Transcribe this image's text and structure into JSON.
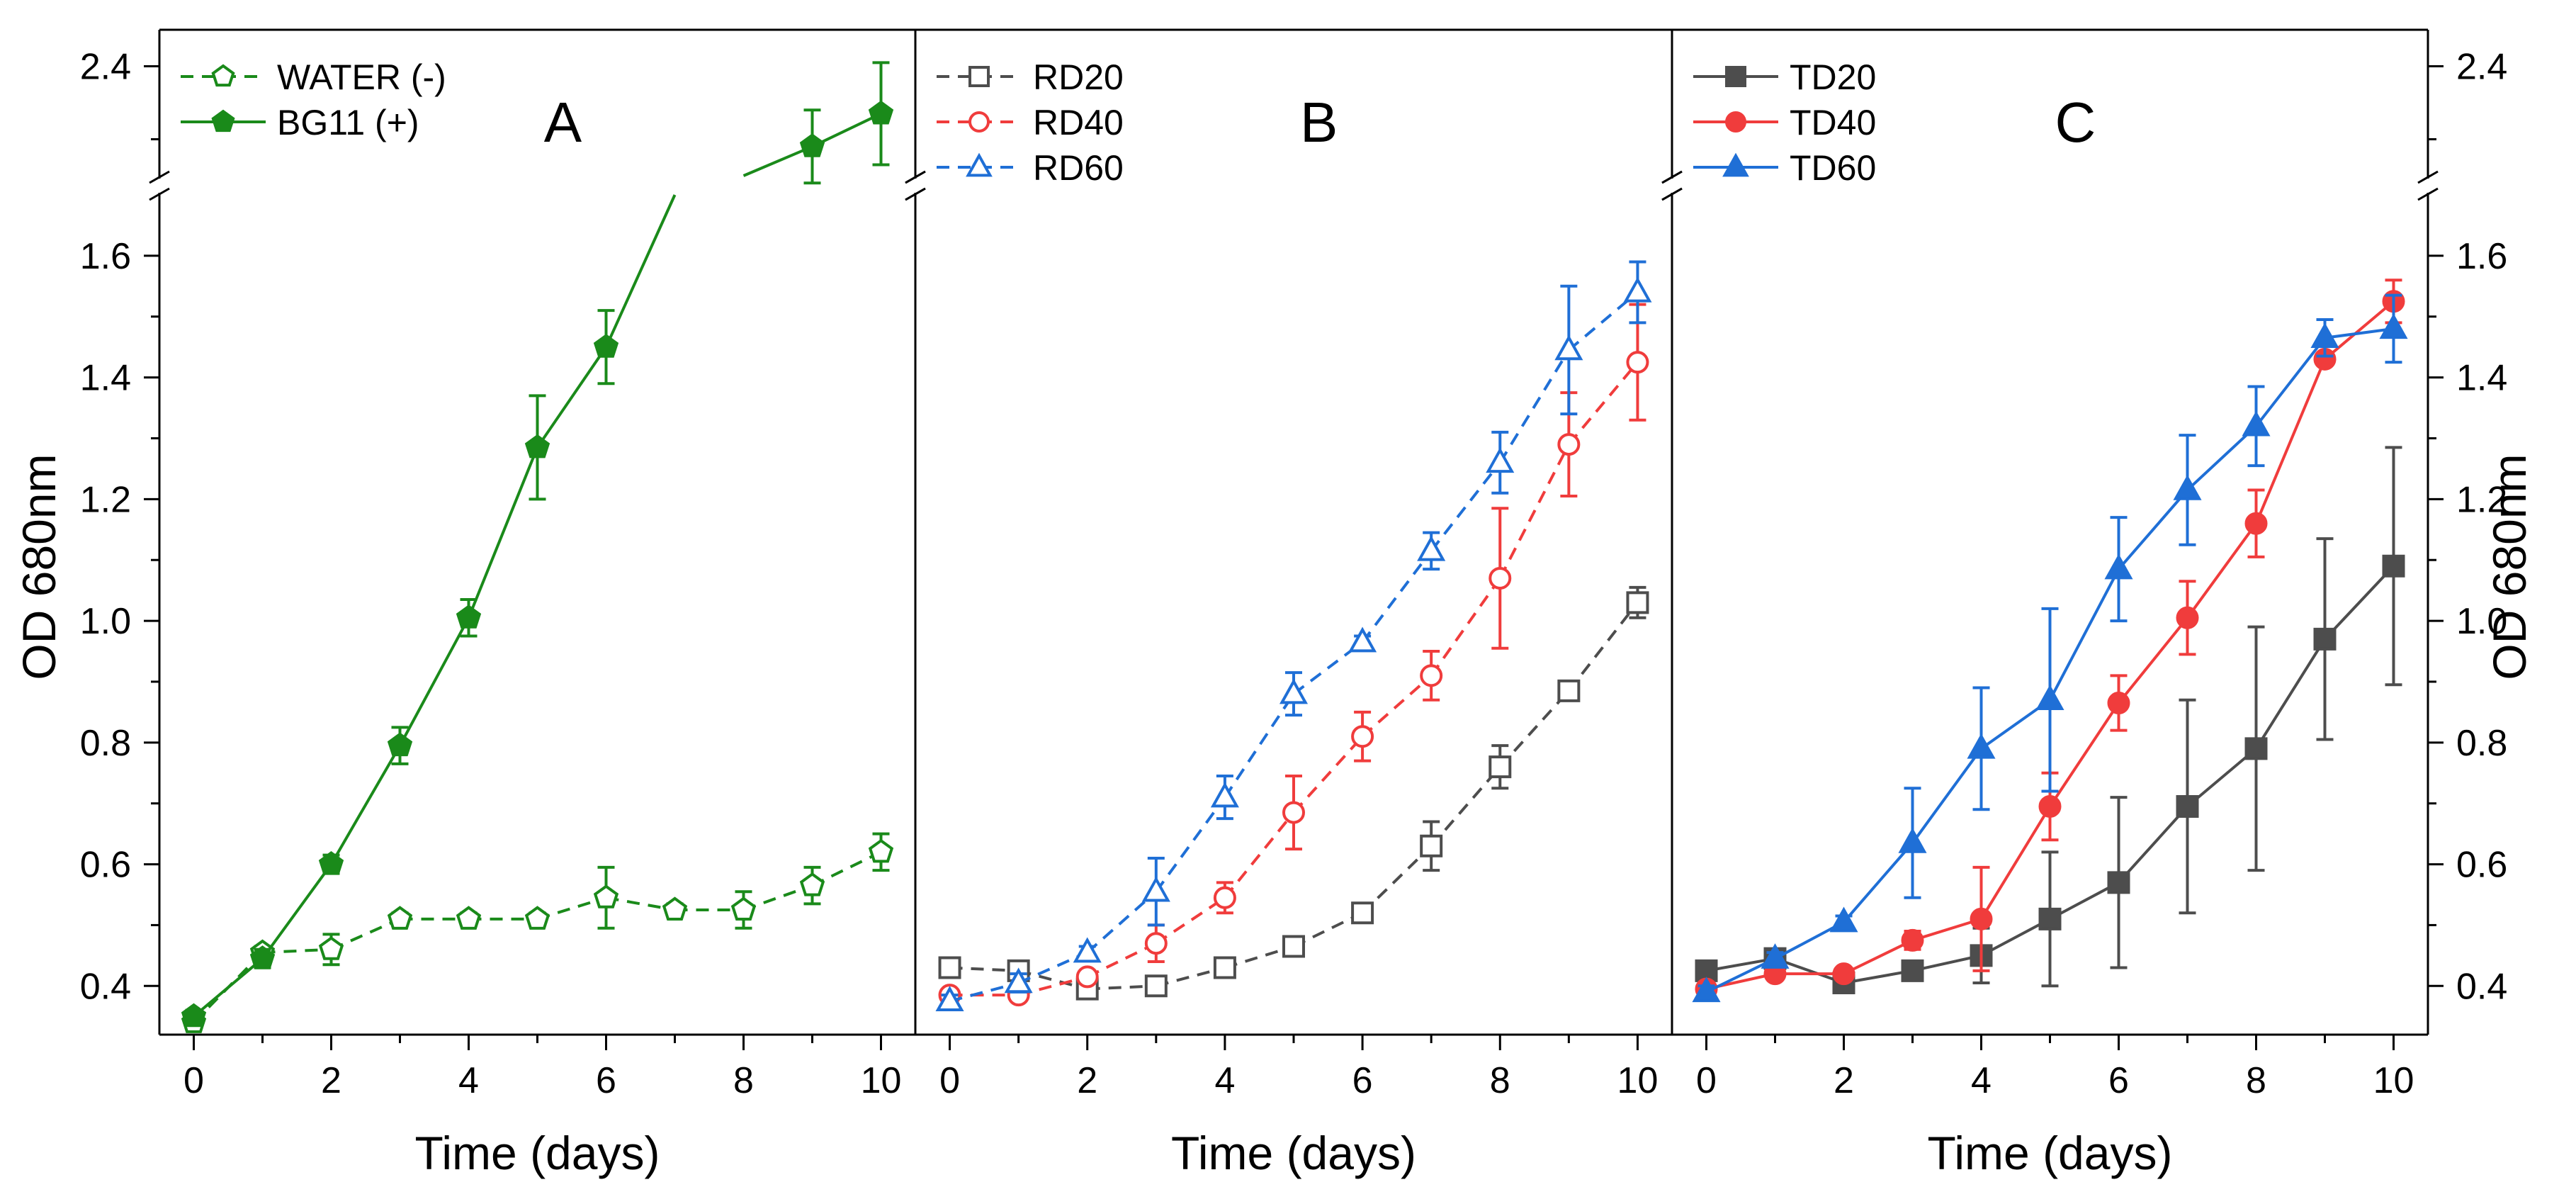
{
  "figure": {
    "ylabel": "OD 680nm",
    "xlabel": "Time (days)",
    "x_ticks": [
      0,
      2,
      4,
      6,
      8,
      10
    ],
    "y_ticks_lower": [
      0.4,
      0.6,
      0.8,
      1.0,
      1.2,
      1.4,
      1.6
    ],
    "y_tick_labels_lower": [
      "0.4",
      "0.6",
      "0.8",
      "1.0",
      "1.2",
      "1.4",
      "1.6"
    ],
    "y_ticks_upper": [
      2.4
    ],
    "y_tick_labels_upper": [
      "2.4"
    ],
    "x_tick_labels": [
      "0",
      "2",
      "4",
      "6",
      "8",
      "10"
    ],
    "colors": {
      "green": "#1a8a1a",
      "gray": "#4d4d4d",
      "red": "#f03c3c",
      "blue": "#1f6fd6"
    }
  },
  "chart_data": [
    {
      "panel": "A",
      "type": "line",
      "xlabel": "Time (days)",
      "ylabel": "OD 680nm",
      "xlim": [
        -0.5,
        10.5
      ],
      "ylim_lower": [
        0.32,
        1.7
      ],
      "ylim_upper": [
        2.1,
        2.5
      ],
      "legend_position": "top-left",
      "series": [
        {
          "name": "WATER (-)",
          "style": "dashed",
          "marker": "pentagon",
          "filled": false,
          "color": "#1a8a1a",
          "x": [
            0,
            1,
            2,
            3,
            4,
            5,
            6,
            7,
            8,
            9,
            10
          ],
          "y": [
            0.34,
            0.455,
            0.46,
            0.51,
            0.51,
            0.51,
            0.545,
            0.525,
            0.525,
            0.565,
            0.62
          ],
          "err": [
            0.01,
            0.01,
            0.025,
            0.01,
            0.01,
            0.01,
            0.05,
            0.01,
            0.03,
            0.03,
            0.03
          ]
        },
        {
          "name": "BG11 (+)",
          "style": "solid",
          "marker": "pentagon",
          "filled": true,
          "color": "#1a8a1a",
          "x": [
            0,
            1,
            2,
            3,
            4,
            5,
            6,
            9,
            10
          ],
          "y": [
            0.35,
            0.445,
            0.6,
            0.795,
            1.005,
            1.285,
            1.45,
            2.18,
            2.27
          ],
          "err": [
            0.01,
            0.015,
            0.015,
            0.03,
            0.03,
            0.085,
            0.06,
            0.1,
            0.14
          ]
        }
      ]
    },
    {
      "panel": "B",
      "type": "line",
      "xlabel": "Time (days)",
      "xlim": [
        -0.5,
        10.5
      ],
      "ylim_lower": [
        0.32,
        1.7
      ],
      "legend_position": "top-left",
      "series": [
        {
          "name": "RD20",
          "style": "dashed",
          "marker": "square",
          "filled": false,
          "color": "#4d4d4d",
          "x": [
            0,
            1,
            2,
            3,
            4,
            5,
            6,
            7,
            8,
            9,
            10
          ],
          "y": [
            0.43,
            0.425,
            0.395,
            0.4,
            0.43,
            0.465,
            0.52,
            0.63,
            0.76,
            0.885,
            1.03
          ],
          "err": [
            0.01,
            0.01,
            0.01,
            0.01,
            0.01,
            0.01,
            0.01,
            0.04,
            0.035,
            0.01,
            0.025
          ]
        },
        {
          "name": "RD40",
          "style": "dashed",
          "marker": "circle",
          "filled": false,
          "color": "#f03c3c",
          "x": [
            0,
            1,
            2,
            3,
            4,
            5,
            6,
            7,
            8,
            9,
            10
          ],
          "y": [
            0.385,
            0.385,
            0.415,
            0.47,
            0.545,
            0.685,
            0.81,
            0.91,
            1.07,
            1.29,
            1.425
          ],
          "err": [
            0.01,
            0.01,
            0.01,
            0.03,
            0.025,
            0.06,
            0.04,
            0.04,
            0.115,
            0.085,
            0.095
          ]
        },
        {
          "name": "RD60",
          "style": "dashed",
          "marker": "triangle",
          "filled": false,
          "color": "#1f6fd6",
          "x": [
            0,
            1,
            2,
            3,
            4,
            5,
            6,
            7,
            8,
            9,
            10
          ],
          "y": [
            0.375,
            0.405,
            0.455,
            0.555,
            0.71,
            0.88,
            0.965,
            1.115,
            1.26,
            1.445,
            1.54
          ],
          "err": [
            0.01,
            0.015,
            0.01,
            0.055,
            0.035,
            0.035,
            0.01,
            0.03,
            0.05,
            0.105,
            0.05
          ]
        }
      ]
    },
    {
      "panel": "C",
      "type": "line",
      "xlabel": "Time (days)",
      "ylabel": "OD 680nm",
      "xlim": [
        -0.5,
        10.5
      ],
      "ylim_lower": [
        0.32,
        1.7
      ],
      "ylim_upper": [
        2.1,
        2.5
      ],
      "legend_position": "top-left",
      "series": [
        {
          "name": "TD20",
          "style": "solid",
          "marker": "square",
          "filled": true,
          "color": "#4d4d4d",
          "x": [
            0,
            1,
            2,
            3,
            4,
            5,
            6,
            7,
            8,
            9,
            10
          ],
          "y": [
            0.425,
            0.445,
            0.405,
            0.425,
            0.45,
            0.51,
            0.57,
            0.695,
            0.79,
            0.97,
            1.09
          ],
          "err": [
            0.01,
            0.01,
            0.01,
            0.01,
            0.045,
            0.11,
            0.14,
            0.175,
            0.2,
            0.165,
            0.195
          ]
        },
        {
          "name": "TD40",
          "style": "solid",
          "marker": "circle",
          "filled": true,
          "color": "#f03c3c",
          "x": [
            0,
            1,
            2,
            3,
            4,
            5,
            6,
            7,
            8,
            9,
            10
          ],
          "y": [
            0.395,
            0.42,
            0.42,
            0.475,
            0.51,
            0.695,
            0.865,
            1.005,
            1.16,
            1.43,
            1.525
          ],
          "err": [
            0.01,
            0.01,
            0.01,
            0.015,
            0.085,
            0.055,
            0.045,
            0.06,
            0.055,
            0.01,
            0.035
          ]
        },
        {
          "name": "TD60",
          "style": "solid",
          "marker": "triangle",
          "filled": true,
          "color": "#1f6fd6",
          "x": [
            0,
            1,
            2,
            3,
            4,
            5,
            6,
            7,
            8,
            9,
            10
          ],
          "y": [
            0.39,
            0.445,
            0.505,
            0.635,
            0.79,
            0.87,
            1.085,
            1.215,
            1.32,
            1.465,
            1.48
          ],
          "err": [
            0.01,
            0.01,
            0.01,
            0.09,
            0.1,
            0.15,
            0.085,
            0.09,
            0.065,
            0.03,
            0.055
          ]
        }
      ]
    }
  ]
}
